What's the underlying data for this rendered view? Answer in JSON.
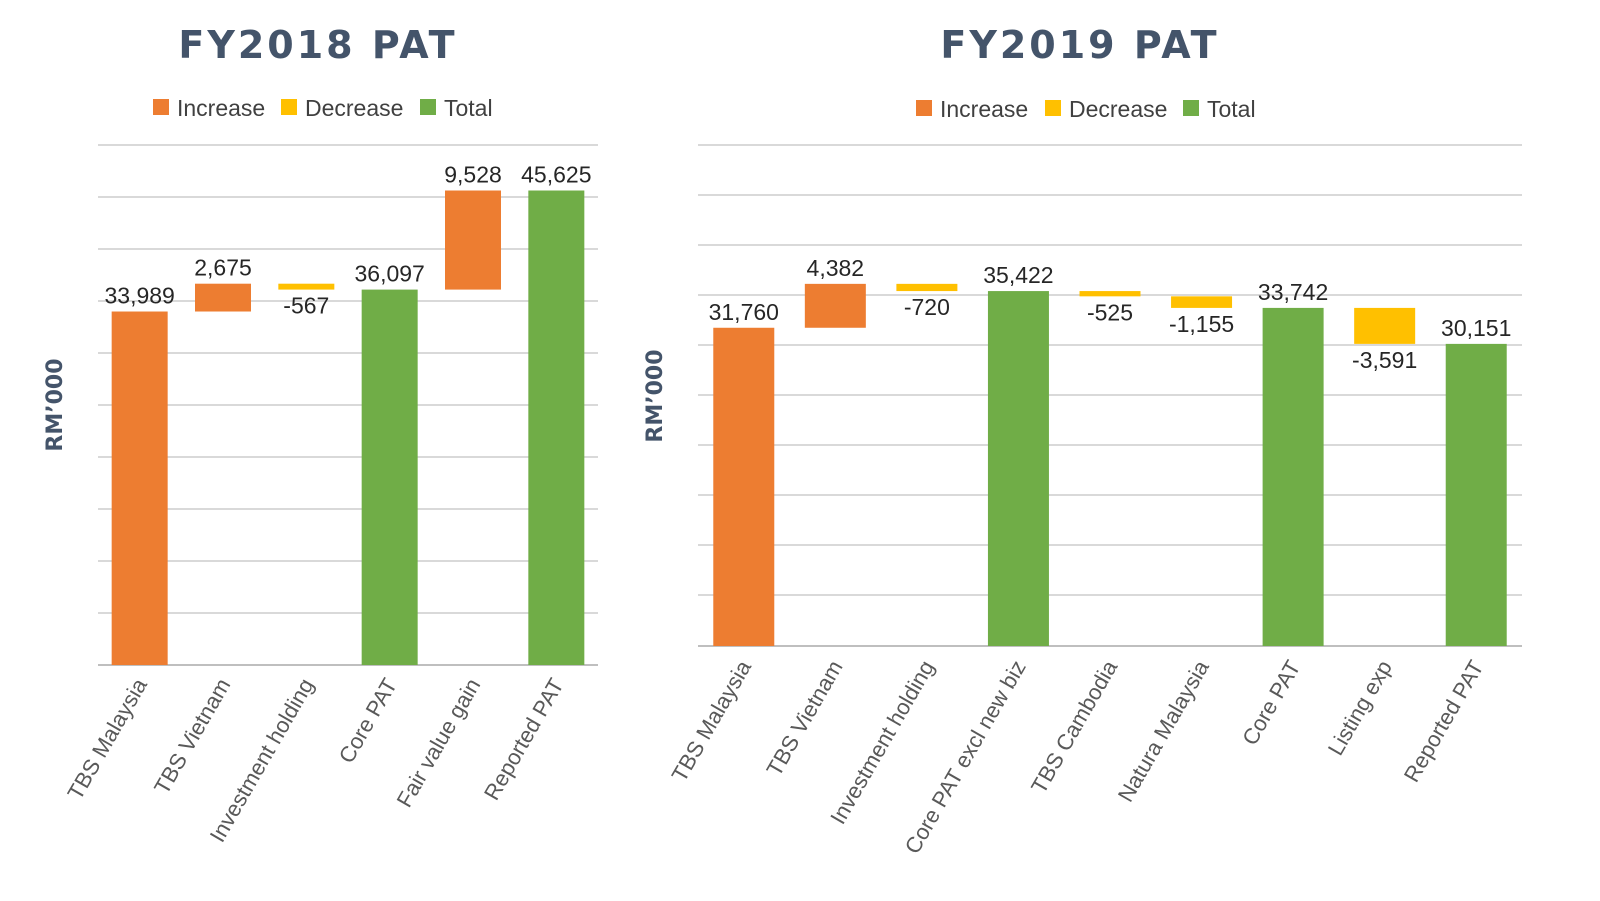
{
  "colors": {
    "increase": "#ed7d31",
    "decrease": "#ffc000",
    "total": "#70ad47"
  },
  "chart_data": [
    {
      "type": "waterfall",
      "title": "FY2018 PAT",
      "ylabel": "RM’000",
      "legend": [
        "Increase",
        "Decrease",
        "Total"
      ],
      "legend_position": "top",
      "grid": true,
      "ylim": [
        0,
        50000
      ],
      "categories": [
        "TBS Malaysia",
        "TBS Vietnam",
        "Investment holding",
        "Core PAT",
        "Fair value gain",
        "Reported PAT"
      ],
      "values": [
        33989,
        2675,
        -567,
        36097,
        9528,
        45625
      ],
      "value_labels": [
        "33,989",
        "2,675",
        "-567",
        "36,097",
        "9,528",
        "45,625"
      ],
      "kinds": [
        "increase",
        "increase",
        "decrease",
        "total",
        "increase",
        "total"
      ]
    },
    {
      "type": "waterfall",
      "title": "FY2019 PAT",
      "ylabel": "RM’000",
      "legend": [
        "Increase",
        "Decrease",
        "Total"
      ],
      "legend_position": "top",
      "grid": true,
      "ylim": [
        0,
        50000
      ],
      "categories": [
        "TBS Malaysia",
        "TBS Vietnam",
        "Investment holding",
        "Core PAT excl new biz",
        "TBS Cambodia",
        "Natura Malaysia",
        "Core PAT",
        "Listing exp",
        "Reported PAT"
      ],
      "values": [
        31760,
        4382,
        -720,
        35422,
        -525,
        -1155,
        33742,
        -3591,
        30151
      ],
      "value_labels": [
        "31,760",
        "4,382",
        "-720",
        "35,422",
        "-525",
        "-1,155",
        "33,742",
        "-3,591",
        "30,151"
      ],
      "kinds": [
        "increase",
        "increase",
        "decrease",
        "total",
        "decrease",
        "decrease",
        "total",
        "decrease",
        "total"
      ]
    }
  ]
}
